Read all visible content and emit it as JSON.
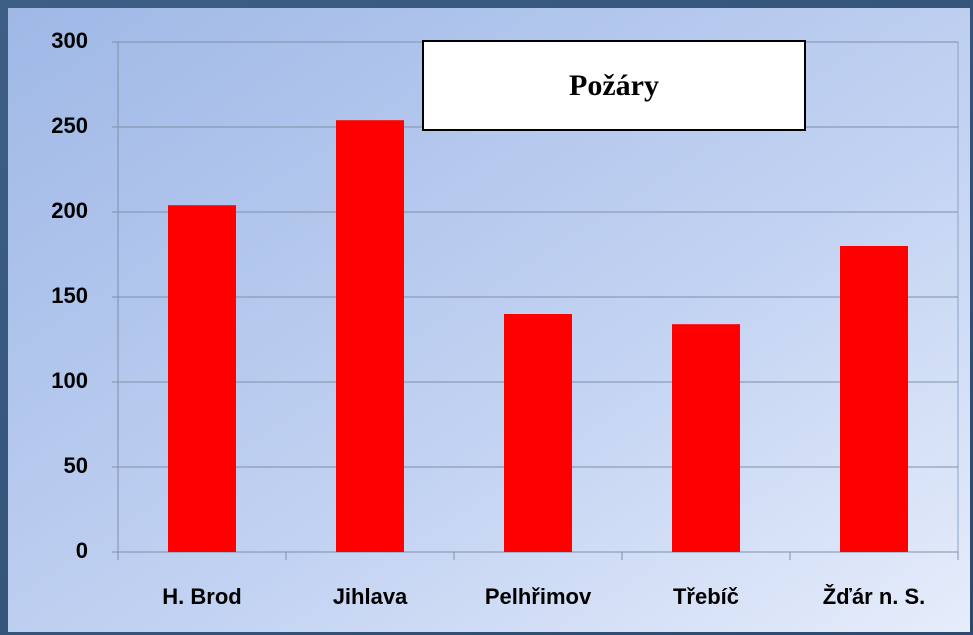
{
  "chart_data": {
    "type": "bar",
    "title": "Požáry",
    "categories": [
      "H. Brod",
      "Jihlava",
      "Pelhřimov",
      "Třebíč",
      "Žďár n. S."
    ],
    "values": [
      204,
      254,
      140,
      134,
      180
    ],
    "color": "#ff0000",
    "ylim": [
      0,
      300
    ],
    "yticks": [
      0,
      50,
      100,
      150,
      200,
      250,
      300
    ],
    "grid": true
  }
}
